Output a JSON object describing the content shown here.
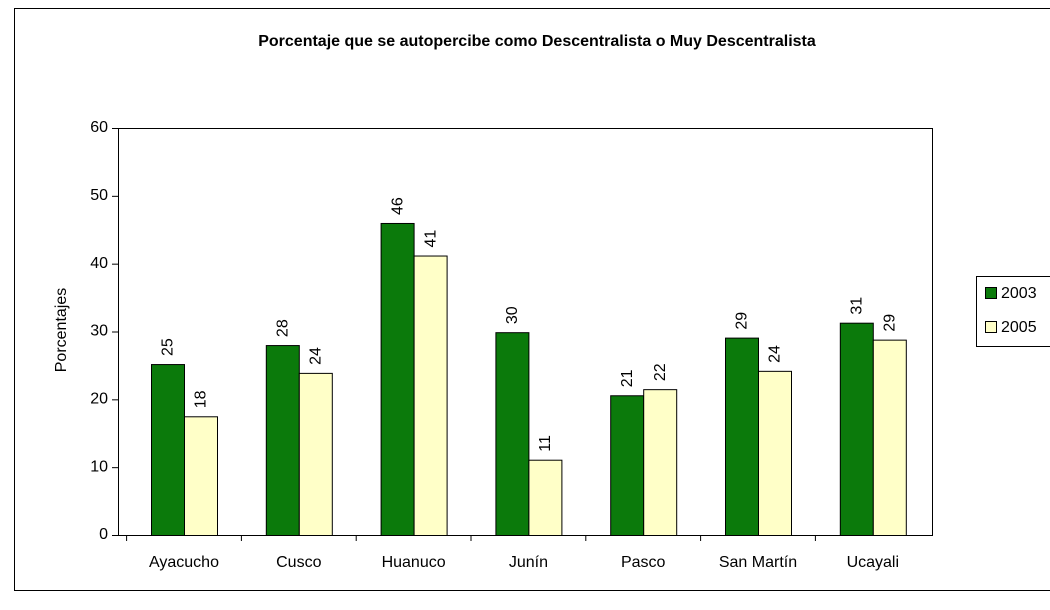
{
  "chart_data": {
    "type": "bar",
    "title": "Porcentaje que se autopercibe como Descentralista o Muy Descentralista",
    "y_label": "Porcentajes",
    "categories": [
      "Ayacucho",
      "Cusco",
      "Huanuco",
      "Junín",
      "Pasco",
      "San Martín",
      "Ucayali"
    ],
    "series": [
      {
        "name": "2003",
        "color": "#0b7a0b",
        "values": [
          25.2,
          28,
          46,
          29.9,
          20.6,
          29.1,
          31.3
        ],
        "value_labels": [
          "25",
          "28",
          "46",
          "30",
          "21",
          "29",
          "31"
        ]
      },
      {
        "name": "2005",
        "color": "#ffffc8",
        "values": [
          17.5,
          23.9,
          41.2,
          11.1,
          21.5,
          24.2,
          28.8
        ],
        "value_labels": [
          "18",
          "24",
          "41",
          "11",
          "22",
          "24",
          "29"
        ]
      }
    ],
    "ylim": [
      0,
      60
    ],
    "yticks": [
      0,
      10,
      20,
      30,
      40,
      50,
      60
    ],
    "grid": false,
    "legend": "right"
  }
}
